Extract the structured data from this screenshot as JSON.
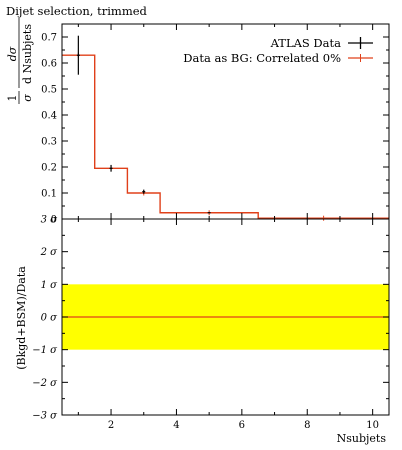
{
  "title": "Dijet selection, trimmed",
  "chart_data": [
    {
      "type": "line",
      "title": "Dijet selection, trimmed",
      "ylabel": {
        "numerator_1": "1",
        "denominator_1": "σ",
        "numerator_2": "dσ",
        "denominator_2": "d Nsubjets"
      },
      "xlabel": "",
      "xlim": [
        0.5,
        10.5
      ],
      "ylim": [
        0,
        0.75
      ],
      "y_ticks": [
        "0",
        "0.1",
        "0.2",
        "0.3",
        "0.4",
        "0.5",
        "0.6",
        "0.7"
      ],
      "y_tick_values": [
        0,
        0.1,
        0.2,
        0.3,
        0.4,
        0.5,
        0.6,
        0.7
      ],
      "grid": false,
      "legend_position": "top-right",
      "series": [
        {
          "name": "ATLAS Data",
          "kind": "errorbar",
          "color": "#000000",
          "points": [
            {
              "x": 1,
              "y": 0.63,
              "err": 0.075
            },
            {
              "x": 2,
              "y": 0.195,
              "err": 0.013
            },
            {
              "x": 3,
              "y": 0.105,
              "err": 0.008
            },
            {
              "x": 5,
              "y": 0.024,
              "err": 0.002
            }
          ]
        },
        {
          "name": "Data as BG: Correlated 0%",
          "kind": "step",
          "color": "#e0401a",
          "bins": [
            {
              "lo": 0.5,
              "hi": 1.5,
              "y": 0.63
            },
            {
              "lo": 1.5,
              "hi": 2.5,
              "y": 0.195
            },
            {
              "lo": 2.5,
              "hi": 3.5,
              "y": 0.1
            },
            {
              "lo": 3.5,
              "hi": 6.5,
              "y": 0.024
            },
            {
              "lo": 6.5,
              "hi": 10.5,
              "y": 0.003
            }
          ]
        }
      ]
    },
    {
      "type": "area",
      "ylabel": "(Bkgd+BSM)/Data",
      "xlabel": "Nsubjets",
      "xlim": [
        0.5,
        10.5
      ],
      "ylim": [
        -3,
        3
      ],
      "x_ticks": [
        "2",
        "4",
        "6",
        "8",
        "10"
      ],
      "x_tick_values": [
        2,
        4,
        6,
        8,
        10
      ],
      "y_ticks": [
        "−3 σ",
        "−2 σ",
        "−1 σ",
        "0 σ",
        "1 σ",
        "2 σ",
        "3 σ"
      ],
      "y_tick_values": [
        -3,
        -2,
        -1,
        0,
        1,
        2,
        3
      ],
      "band": {
        "lo": -1,
        "hi": 1,
        "color": "#ffff00"
      },
      "line": {
        "y": 0,
        "color": "#e0401a"
      }
    }
  ]
}
